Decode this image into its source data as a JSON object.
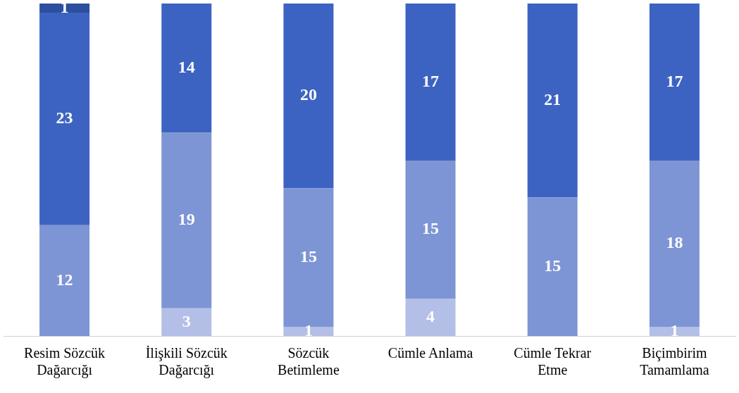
{
  "chart_data": {
    "type": "bar",
    "stacked": true,
    "data_labels": true,
    "legend": false,
    "grid": false,
    "categories": [
      "Resim Sözcük Dağarcığı",
      "İlişkili Sözcük Dağarcığı",
      "Sözcük Betimleme",
      "Cümle Anlama",
      "Cümle Tekrar Etme",
      "Biçimbirim Tamamlama"
    ],
    "series": [
      {
        "color": "#b3bfe6",
        "values": [
          null,
          3,
          1,
          4,
          null,
          1
        ]
      },
      {
        "color": "#7d95d4",
        "values": [
          12,
          19,
          15,
          15,
          15,
          18
        ]
      },
      {
        "color": "#3d63c2",
        "values": [
          23,
          14,
          20,
          17,
          21,
          17
        ]
      },
      {
        "color": "#2c4f9e",
        "values": [
          1,
          null,
          null,
          null,
          null,
          null
        ]
      }
    ]
  }
}
